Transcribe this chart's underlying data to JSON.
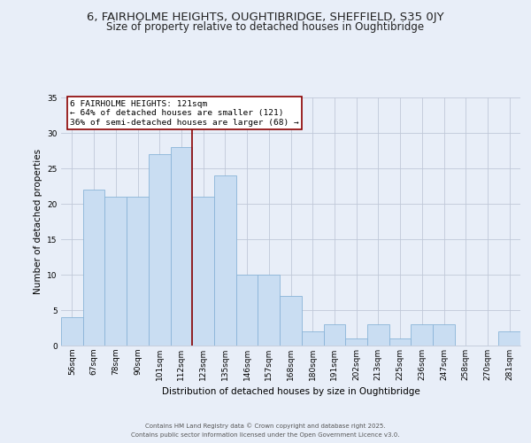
{
  "title1": "6, FAIRHOLME HEIGHTS, OUGHTIBRIDGE, SHEFFIELD, S35 0JY",
  "title2": "Size of property relative to detached houses in Oughtibridge",
  "xlabel": "Distribution of detached houses by size in Oughtibridge",
  "ylabel": "Number of detached properties",
  "bar_labels": [
    "56sqm",
    "67sqm",
    "78sqm",
    "90sqm",
    "101sqm",
    "112sqm",
    "123sqm",
    "135sqm",
    "146sqm",
    "157sqm",
    "168sqm",
    "180sqm",
    "191sqm",
    "202sqm",
    "213sqm",
    "225sqm",
    "236sqm",
    "247sqm",
    "258sqm",
    "270sqm",
    "281sqm"
  ],
  "bar_values": [
    4,
    22,
    21,
    21,
    27,
    28,
    21,
    24,
    10,
    10,
    7,
    2,
    3,
    1,
    3,
    1,
    3,
    3,
    0,
    0,
    2
  ],
  "bar_color": "#c9ddf2",
  "bar_edge_color": "#8ab4d8",
  "vline_color": "#8b0000",
  "annotation_title": "6 FAIRHOLME HEIGHTS: 121sqm",
  "annotation_line1": "← 64% of detached houses are smaller (121)",
  "annotation_line2": "36% of semi-detached houses are larger (68) →",
  "annotation_box_color": "#ffffff",
  "annotation_box_edge": "#8b0000",
  "ylim": [
    0,
    35
  ],
  "yticks": [
    0,
    5,
    10,
    15,
    20,
    25,
    30,
    35
  ],
  "bg_color": "#e8eef8",
  "plot_bg_color": "#e8eef8",
  "footer1": "Contains HM Land Registry data © Crown copyright and database right 2025.",
  "footer2": "Contains public sector information licensed under the Open Government Licence v3.0.",
  "title_fontsize": 9.5,
  "subtitle_fontsize": 8.5,
  "axis_label_fontsize": 7.5,
  "tick_fontsize": 6.5,
  "footer_fontsize": 5.0
}
